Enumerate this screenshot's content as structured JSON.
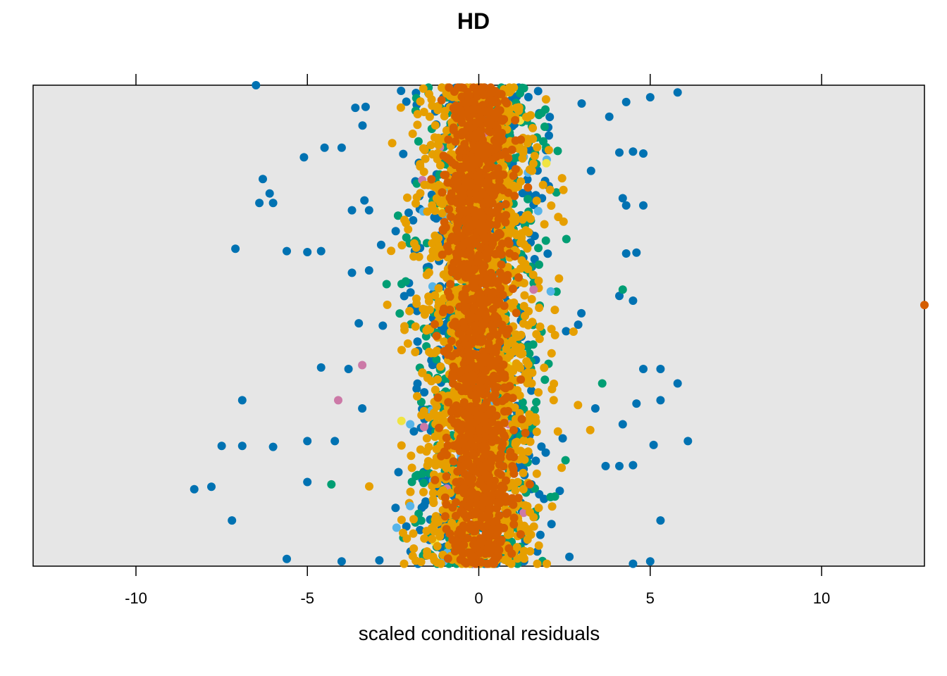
{
  "chart_data": {
    "type": "scatter",
    "title": "HD",
    "xlabel": "scaled conditional residuals",
    "ylabel": "",
    "xlim": [
      -13,
      13
    ],
    "x_ticks": [
      -10,
      -5,
      0,
      5,
      10
    ],
    "x_tick_labels": [
      "-10",
      "-5",
      "0",
      "5",
      "10"
    ],
    "grid": false,
    "background": "#e6e6e6",
    "point_colors": [
      "#0072b2",
      "#009e73",
      "#e69f00",
      "#d55e00",
      "#56b4e9",
      "#cc79a7",
      "#f0e442"
    ],
    "outliers": [
      {
        "x": -6.5,
        "y": 0.0,
        "color": "#0072b2"
      },
      {
        "x": 5.8,
        "y": 0.015,
        "color": "#0072b2"
      },
      {
        "x": 5.0,
        "y": 0.025,
        "color": "#0072b2"
      },
      {
        "x": 4.3,
        "y": 0.035,
        "color": "#0072b2"
      },
      {
        "x": 3.0,
        "y": 0.038,
        "color": "#0072b2"
      },
      {
        "x": -3.3,
        "y": 0.045,
        "color": "#0072b2"
      },
      {
        "x": -3.6,
        "y": 0.047,
        "color": "#0072b2"
      },
      {
        "x": -4.5,
        "y": 0.13,
        "color": "#0072b2"
      },
      {
        "x": -4.0,
        "y": 0.13,
        "color": "#0072b2"
      },
      {
        "x": -5.1,
        "y": 0.15,
        "color": "#0072b2"
      },
      {
        "x": 4.1,
        "y": 0.14,
        "color": "#0072b2"
      },
      {
        "x": 4.5,
        "y": 0.138,
        "color": "#0072b2"
      },
      {
        "x": 4.8,
        "y": 0.142,
        "color": "#0072b2"
      },
      {
        "x": -6.3,
        "y": 0.195,
        "color": "#0072b2"
      },
      {
        "x": -6.1,
        "y": 0.225,
        "color": "#0072b2"
      },
      {
        "x": -6.4,
        "y": 0.245,
        "color": "#0072b2"
      },
      {
        "x": -6.0,
        "y": 0.245,
        "color": "#0072b2"
      },
      {
        "x": 4.2,
        "y": 0.235,
        "color": "#0072b2"
      },
      {
        "x": 4.3,
        "y": 0.25,
        "color": "#0072b2"
      },
      {
        "x": 4.8,
        "y": 0.25,
        "color": "#0072b2"
      },
      {
        "x": -3.7,
        "y": 0.26,
        "color": "#0072b2"
      },
      {
        "x": -3.2,
        "y": 0.26,
        "color": "#0072b2"
      },
      {
        "x": -7.1,
        "y": 0.34,
        "color": "#0072b2"
      },
      {
        "x": -5.6,
        "y": 0.345,
        "color": "#0072b2"
      },
      {
        "x": -5.0,
        "y": 0.347,
        "color": "#0072b2"
      },
      {
        "x": -4.6,
        "y": 0.345,
        "color": "#0072b2"
      },
      {
        "x": 4.3,
        "y": 0.35,
        "color": "#0072b2"
      },
      {
        "x": 4.6,
        "y": 0.348,
        "color": "#0072b2"
      },
      {
        "x": -3.7,
        "y": 0.39,
        "color": "#0072b2"
      },
      {
        "x": -3.2,
        "y": 0.385,
        "color": "#0072b2"
      },
      {
        "x": 4.1,
        "y": 0.438,
        "color": "#0072b2"
      },
      {
        "x": 4.5,
        "y": 0.448,
        "color": "#0072b2"
      },
      {
        "x": 4.2,
        "y": 0.425,
        "color": "#009e73"
      },
      {
        "x": 13.0,
        "y": 0.457,
        "color": "#d55e00"
      },
      {
        "x": -3.5,
        "y": 0.495,
        "color": "#0072b2"
      },
      {
        "x": -2.8,
        "y": 0.5,
        "color": "#0072b2"
      },
      {
        "x": 2.9,
        "y": 0.498,
        "color": "#0072b2"
      },
      {
        "x": -4.6,
        "y": 0.587,
        "color": "#0072b2"
      },
      {
        "x": -3.8,
        "y": 0.59,
        "color": "#0072b2"
      },
      {
        "x": -3.4,
        "y": 0.582,
        "color": "#cc79a7"
      },
      {
        "x": 4.8,
        "y": 0.59,
        "color": "#0072b2"
      },
      {
        "x": 5.3,
        "y": 0.59,
        "color": "#0072b2"
      },
      {
        "x": 5.8,
        "y": 0.62,
        "color": "#0072b2"
      },
      {
        "x": 3.6,
        "y": 0.62,
        "color": "#009e73"
      },
      {
        "x": -6.9,
        "y": 0.655,
        "color": "#0072b2"
      },
      {
        "x": -4.1,
        "y": 0.655,
        "color": "#cc79a7"
      },
      {
        "x": -3.4,
        "y": 0.672,
        "color": "#0072b2"
      },
      {
        "x": 3.4,
        "y": 0.672,
        "color": "#0072b2"
      },
      {
        "x": 4.6,
        "y": 0.662,
        "color": "#0072b2"
      },
      {
        "x": 5.3,
        "y": 0.655,
        "color": "#0072b2"
      },
      {
        "x": 4.2,
        "y": 0.705,
        "color": "#0072b2"
      },
      {
        "x": -7.5,
        "y": 0.75,
        "color": "#0072b2"
      },
      {
        "x": -6.9,
        "y": 0.75,
        "color": "#0072b2"
      },
      {
        "x": -6.0,
        "y": 0.752,
        "color": "#0072b2"
      },
      {
        "x": -5.0,
        "y": 0.74,
        "color": "#0072b2"
      },
      {
        "x": -4.2,
        "y": 0.74,
        "color": "#0072b2"
      },
      {
        "x": 5.1,
        "y": 0.748,
        "color": "#0072b2"
      },
      {
        "x": 6.1,
        "y": 0.74,
        "color": "#0072b2"
      },
      {
        "x": -8.3,
        "y": 0.84,
        "color": "#0072b2"
      },
      {
        "x": -7.8,
        "y": 0.835,
        "color": "#0072b2"
      },
      {
        "x": -5.0,
        "y": 0.825,
        "color": "#0072b2"
      },
      {
        "x": -4.3,
        "y": 0.83,
        "color": "#009e73"
      },
      {
        "x": 3.7,
        "y": 0.792,
        "color": "#0072b2"
      },
      {
        "x": 4.1,
        "y": 0.792,
        "color": "#0072b2"
      },
      {
        "x": 4.5,
        "y": 0.79,
        "color": "#0072b2"
      },
      {
        "x": -7.2,
        "y": 0.905,
        "color": "#0072b2"
      },
      {
        "x": 5.3,
        "y": 0.905,
        "color": "#0072b2"
      },
      {
        "x": -2.0,
        "y": 0.875,
        "color": "#56b4e9"
      },
      {
        "x": -2.0,
        "y": 0.705,
        "color": "#56b4e9"
      },
      {
        "x": 1.6,
        "y": 0.425,
        "color": "#cc79a7"
      },
      {
        "x": -5.6,
        "y": 0.985,
        "color": "#0072b2"
      },
      {
        "x": -4.0,
        "y": 0.99,
        "color": "#0072b2"
      },
      {
        "x": -2.9,
        "y": 0.988,
        "color": "#0072b2"
      },
      {
        "x": 4.5,
        "y": 0.995,
        "color": "#0072b2"
      },
      {
        "x": 5.0,
        "y": 0.99,
        "color": "#0072b2"
      }
    ]
  }
}
